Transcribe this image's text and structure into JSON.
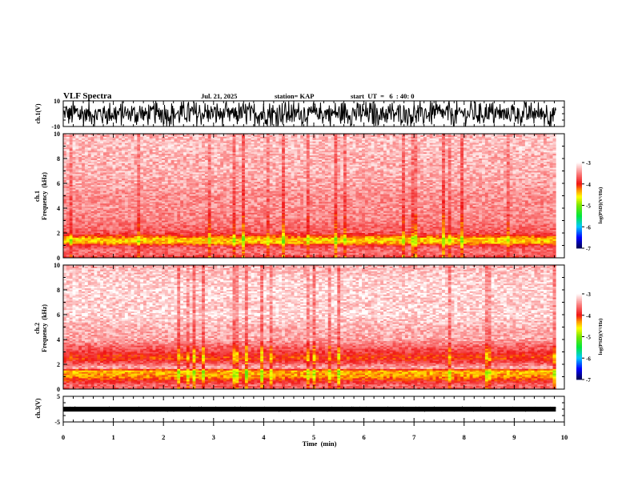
{
  "header": {
    "title": "VLF Spectra",
    "date": "Jul. 21, 2025",
    "station": "station= KAP",
    "start": "start  UT  =   6  : 40: 0"
  },
  "chart_data": [
    {
      "type": "line",
      "name": "ch1-waveform",
      "ylabel": "ch.1(V)",
      "ylim": [
        -10,
        10
      ],
      "yticks": [
        "10",
        "-10"
      ],
      "xlim": [
        0,
        10
      ],
      "data_end_min": 9.83,
      "description_values": {
        "amplitude_range_V": [
          -10,
          10
        ],
        "saturated": true
      }
    },
    {
      "type": "heatmap",
      "name": "ch1-spectrogram",
      "ylabel_line1": "ch.1",
      "ylabel_line2": "Frequency  (kHz)",
      "ylim": [
        0,
        10
      ],
      "yticks": [
        "0",
        "2",
        "4",
        "6",
        "8",
        "10"
      ],
      "xlim": [
        0,
        10
      ],
      "data_end_min": 9.83,
      "profile_khz": [
        0,
        0.3,
        0.6,
        0.9,
        1.2,
        1.5,
        2,
        3,
        4,
        5,
        6,
        7,
        8,
        9,
        10
      ],
      "profile_logpsd": [
        -3.9,
        -3.6,
        -3.6,
        -3.7,
        -4.4,
        -4.5,
        -3.7,
        -3.5,
        -3.45,
        -3.45,
        -3.35,
        -3.3,
        -3.3,
        -3.25,
        -3.3
      ],
      "colorbar": {
        "label": "log(PSD)(V²/Hz)",
        "ticks": [
          "-3",
          "-4",
          "-5",
          "-6",
          "-7"
        ],
        "range": [
          -7,
          -3
        ]
      }
    },
    {
      "type": "heatmap",
      "name": "ch2-spectrogram",
      "ylabel_line1": "ch.2",
      "ylabel_line2": "Frequency  (kHz)",
      "ylim": [
        0,
        10
      ],
      "yticks": [
        "0",
        "2",
        "4",
        "6",
        "8",
        "10"
      ],
      "xlim": [
        0,
        10
      ],
      "data_end_min": 9.83,
      "profile_khz": [
        0,
        0.3,
        0.6,
        1.0,
        1.5,
        1.7,
        2.0,
        2.5,
        3.0,
        3.5,
        4,
        5,
        6,
        7,
        8,
        9,
        10
      ],
      "profile_logpsd": [
        -3.7,
        -3.6,
        -3.9,
        -4.3,
        -4.4,
        -3.3,
        -3.6,
        -4.1,
        -3.8,
        -3.6,
        -3.35,
        -3.3,
        -3.15,
        -3.2,
        -3.15,
        -3.2,
        -3.3
      ],
      "colorbar": {
        "label": "log(PSD)(V²/Hz)",
        "ticks": [
          "-3",
          "-4",
          "-5",
          "-6",
          "-7"
        ],
        "range": [
          -7,
          -3
        ]
      }
    },
    {
      "type": "line",
      "name": "ch3-waveform",
      "ylabel": "ch.3(V)",
      "ylim": [
        -5,
        5
      ],
      "yticks": [
        "5",
        "-5"
      ],
      "xlim": [
        0,
        10
      ],
      "data_end_min": 9.83,
      "description_values": {
        "mean_V": 0.0,
        "amplitude_V": 0.6
      }
    }
  ],
  "xaxis": {
    "label": "Time  (min)",
    "ticks": [
      "0",
      "1",
      "2",
      "3",
      "4",
      "5",
      "6",
      "7",
      "8",
      "9",
      "10"
    ]
  },
  "colors": {
    "spectrum_low": "#00005f",
    "spectrum_high": "#ffffff",
    "trace": "#000000"
  }
}
